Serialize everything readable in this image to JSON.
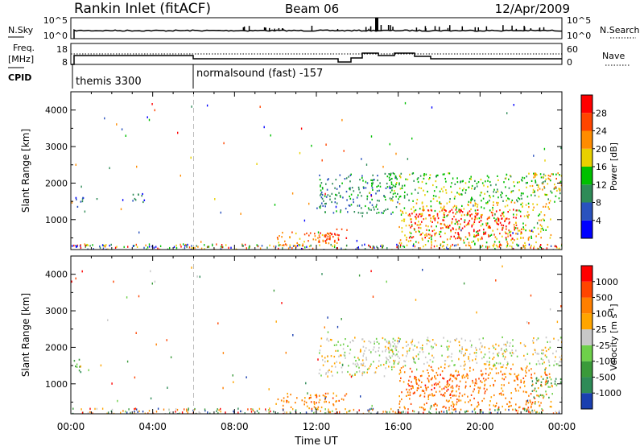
{
  "header": {
    "station": "Rankin Inlet (fitACF)",
    "beam": "Beam 06",
    "date": "12/Apr/2009"
  },
  "noise_panel": {
    "left_label": "N.Sky",
    "right_label": "N.Search",
    "left_ticks": [
      "10^5",
      "10^0"
    ],
    "right_ticks": [
      "10^5",
      "10^0"
    ]
  },
  "freq_panel": {
    "left_label_line1": "Freq.",
    "left_label_line2": "[MHz]",
    "right_label": "Nave",
    "left_ticks": [
      "18",
      "8"
    ],
    "right_ticks": [
      "60",
      "0"
    ]
  },
  "cpid": {
    "label": "CPID",
    "segments": [
      {
        "name": "themis 3300",
        "start_hour": 0
      },
      {
        "name": "normalsound (fast) -157",
        "start_hour": 6
      }
    ]
  },
  "chart_data": [
    {
      "type": "heatmap",
      "name": "power",
      "ylabel": "Slant Range [km]",
      "xlabel": "",
      "ylim": [
        180,
        4500
      ],
      "xlim": [
        0,
        24
      ],
      "yticks": [
        "1000",
        "2000",
        "3000",
        "4000"
      ],
      "colorbar": {
        "label": "Power [dB]",
        "levels": [
          "4",
          "8",
          "12",
          "16",
          "20",
          "24",
          "28"
        ],
        "colors": [
          "#0000ff",
          "#2a52be",
          "#2e8b57",
          "#00c000",
          "#e8d000",
          "#ff8c00",
          "#ff4500",
          "#ff0000"
        ]
      },
      "echo_regions": [
        {
          "t0": 0.1,
          "t1": 0.6,
          "r0": 1300,
          "r1": 1700,
          "level": 1
        },
        {
          "t0": 1.2,
          "t1": 1.4,
          "r0": 1500,
          "r1": 1600,
          "level": 1
        },
        {
          "t0": 3.0,
          "t1": 3.8,
          "r0": 1500,
          "r1": 1800,
          "level": 1
        },
        {
          "t0": 10.0,
          "t1": 13.0,
          "r0": 300,
          "r1": 700,
          "level": 5
        },
        {
          "t0": 11.5,
          "t1": 13.5,
          "r0": 400,
          "r1": 800,
          "level": 6
        },
        {
          "t0": 12.0,
          "t1": 16.0,
          "r0": 1200,
          "r1": 2300,
          "level": 2
        },
        {
          "t0": 16.0,
          "t1": 23.5,
          "r0": 300,
          "r1": 1500,
          "level": 4
        },
        {
          "t0": 16.5,
          "t1": 22.0,
          "r0": 500,
          "r1": 1300,
          "level": 7
        },
        {
          "t0": 15.5,
          "t1": 24.0,
          "r0": 1500,
          "r1": 2300,
          "level": 3
        },
        {
          "t0": 22.5,
          "t1": 24.0,
          "r0": 1800,
          "r1": 2300,
          "level": 5
        }
      ]
    },
    {
      "type": "heatmap",
      "name": "velocity",
      "ylabel": "Slant Range [km]",
      "xlabel": "Time UT",
      "ylim": [
        180,
        4500
      ],
      "xlim": [
        0,
        24
      ],
      "yticks": [
        "1000",
        "2000",
        "3000",
        "4000"
      ],
      "xticks": [
        "00:00",
        "04:00",
        "08:00",
        "12:00",
        "16:00",
        "20:00",
        "00:00"
      ],
      "colorbar": {
        "label": "Velocity [m s",
        "label_sup": "-1",
        "label_end": "]",
        "levels": [
          "1000",
          "500",
          "100",
          "25",
          "-25",
          "-100",
          "-500",
          "-1000"
        ],
        "colors": [
          "#1a3fb0",
          "#2e8b57",
          "#3a9a3a",
          "#6ed04a",
          "#c8c8c8",
          "#ffa500",
          "#ff7f00",
          "#ff4500",
          "#ff0000"
        ]
      },
      "echo_regions": [
        {
          "t0": 0.1,
          "t1": 0.6,
          "r0": 1300,
          "r1": 1700,
          "level": 2
        },
        {
          "t0": 10.0,
          "t1": 13.5,
          "r0": 300,
          "r1": 800,
          "level": 6
        },
        {
          "t0": 12.0,
          "t1": 16.0,
          "r0": 1200,
          "r1": 2300,
          "level": 4
        },
        {
          "t0": 16.0,
          "t1": 23.5,
          "r0": 300,
          "r1": 1500,
          "level": 6
        },
        {
          "t0": 16.5,
          "t1": 19.0,
          "r0": 700,
          "r1": 1300,
          "level": 7
        },
        {
          "t0": 15.5,
          "t1": 24.0,
          "r0": 1500,
          "r1": 2300,
          "level": 4
        },
        {
          "t0": 22.5,
          "t1": 24.0,
          "r0": 600,
          "r1": 1200,
          "level": 2
        }
      ]
    }
  ]
}
